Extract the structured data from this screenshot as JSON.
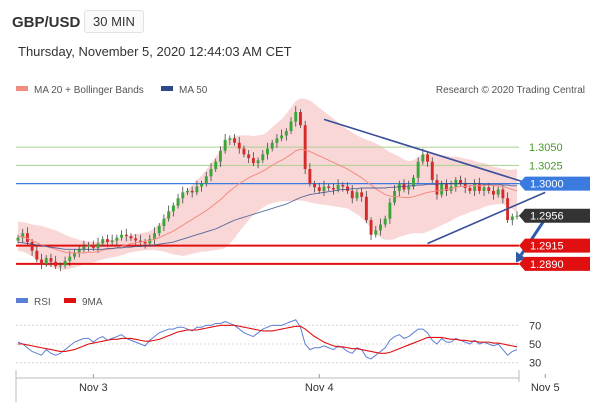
{
  "header": {
    "symbol": "GBP/USD",
    "timeframe": "30 MIN",
    "datetime": "Thursday, November 5, 2020 12:44:03 AM CET"
  },
  "legend_main": [
    {
      "label": "MA 20 + Bollinger Bands",
      "color": "#f28b82"
    },
    {
      "label": "MA 50",
      "color": "#2b4a8a"
    }
  ],
  "credit": "Research © 2020 Trading Central",
  "legend_rsi": [
    {
      "label": "RSI",
      "color": "#5b7fd6"
    },
    {
      "label": "9MA",
      "color": "#e01010"
    }
  ],
  "colors": {
    "bull": "#3aa63a",
    "bear": "#d62a2a",
    "band_fill": "#f8c9c9",
    "ma20": "#f28b82",
    "ma50": "#2b4a8a",
    "resistance_green": "#a9d18e",
    "pivot_blue": "#3b7be0",
    "support_red": "#e01010",
    "trendline": "#3a4f9a",
    "arrow": "#2f5aa8"
  },
  "chart_data": {
    "type": "candlestick",
    "price_range": [
      1.2868,
      1.312
    ],
    "x_labels": [
      {
        "label": "Nov 3",
        "index": 16
      },
      {
        "label": "Nov 4",
        "index": 64
      },
      {
        "label": "Nov 5",
        "index": 112
      }
    ],
    "levels": [
      {
        "label": "1.3050",
        "value": 1.305,
        "kind": "resistance"
      },
      {
        "label": "1.3025",
        "value": 1.3025,
        "kind": "resistance"
      },
      {
        "label": "1.3000",
        "value": 1.3,
        "kind": "pivot"
      },
      {
        "label": "1.2956",
        "value": 1.2956,
        "kind": "last"
      },
      {
        "label": "1.2915",
        "value": 1.2915,
        "kind": "support"
      },
      {
        "label": "1.2890",
        "value": 1.289,
        "kind": "support"
      }
    ],
    "closes": [
      1.2926,
      1.2932,
      1.292,
      1.2908,
      1.2896,
      1.289,
      1.2898,
      1.2893,
      1.2887,
      1.2888,
      1.2894,
      1.29,
      1.2906,
      1.291,
      1.2914,
      1.2916,
      1.2912,
      1.2918,
      1.2924,
      1.292,
      1.2922,
      1.2926,
      1.293,
      1.2928,
      1.2925,
      1.2922,
      1.292,
      1.2918,
      1.2924,
      1.2932,
      1.2942,
      1.2952,
      1.2962,
      1.297,
      1.298,
      1.2988,
      1.299,
      1.2988,
      1.2996,
      1.3,
      1.301,
      1.302,
      1.303,
      1.3045,
      1.306,
      1.3062,
      1.3056,
      1.3048,
      1.304,
      1.3035,
      1.3028,
      1.3032,
      1.304,
      1.3048,
      1.3056,
      1.3062,
      1.3066,
      1.3072,
      1.3085,
      1.3098,
      1.308,
      1.302,
      1.3,
      1.2995,
      1.299,
      1.2996,
      1.2994,
      1.2992,
      1.2998,
      1.2996,
      1.299,
      1.298,
      1.2988,
      1.2982,
      1.295,
      1.293,
      1.2936,
      1.2944,
      1.2952,
      1.2974,
      1.299,
      1.3,
      1.2992,
      1.2996,
      1.3008,
      1.303,
      1.304,
      1.303,
      1.3005,
      1.2985,
      1.3,
      1.299,
      1.2996,
      1.3005,
      1.3,
      1.2994,
      1.299,
      1.3,
      1.299,
      1.2995,
      1.299,
      1.2985,
      1.2992,
      1.298,
      1.295,
      1.2955,
      1.2956
    ],
    "ma20": [
      1.2928,
      1.2927,
      1.2925,
      1.2922,
      1.2919,
      1.2916,
      1.2914,
      1.2912,
      1.291,
      1.2908,
      1.2906,
      1.2905,
      1.2905,
      1.2905,
      1.2905,
      1.2906,
      1.2906,
      1.2907,
      1.2909,
      1.291,
      1.2911,
      1.2912,
      1.2914,
      1.2916,
      1.2918,
      1.2919,
      1.292,
      1.2921,
      1.2922,
      1.2924,
      1.2926,
      1.2929,
      1.2932,
      1.2935,
      1.2939,
      1.2943,
      1.2947,
      1.2951,
      1.2955,
      1.2959,
      1.2963,
      1.2968,
      1.2973,
      1.2978,
      1.2984,
      1.299,
      1.2995,
      1.3,
      1.3004,
      1.3008,
      1.3011,
      1.3014,
      1.3017,
      1.3021,
      1.3025,
      1.3029,
      1.3032,
      1.3036,
      1.304,
      1.3045,
      1.3047,
      1.3046,
      1.3044,
      1.3041,
      1.3038,
      1.3035,
      1.3032,
      1.3029,
      1.3026,
      1.3023,
      1.302,
      1.3016,
      1.3012,
      1.3008,
      1.3003,
      1.2998,
      1.2993,
      1.2989,
      1.2985,
      1.2983,
      1.2982,
      1.2982,
      1.2981,
      1.2981,
      1.2982,
      1.2984,
      1.2986,
      1.2988,
      1.2989,
      1.299,
      1.2991,
      1.2992,
      1.2993,
      1.2995,
      1.2996,
      1.2996,
      1.2997,
      1.2997,
      1.2997,
      1.2998,
      1.2998,
      1.2997,
      1.2997,
      1.2996,
      1.2994,
      1.2992,
      1.299
    ],
    "bb_width": [
      0.002,
      0.002,
      0.0021,
      0.0022,
      0.0024,
      0.0026,
      0.0026,
      0.0026,
      0.0026,
      0.0025,
      0.0024,
      0.0022,
      0.002,
      0.0018,
      0.0016,
      0.0015,
      0.0014,
      0.0013,
      0.0013,
      0.0012,
      0.0012,
      0.0012,
      0.0012,
      0.0012,
      0.0012,
      0.0012,
      0.0012,
      0.0012,
      0.0013,
      0.0015,
      0.0018,
      0.0022,
      0.0027,
      0.0032,
      0.0037,
      0.0042,
      0.0045,
      0.0047,
      0.005,
      0.0052,
      0.0056,
      0.006,
      0.0064,
      0.0068,
      0.0072,
      0.0072,
      0.007,
      0.0066,
      0.0062,
      0.0058,
      0.0054,
      0.0052,
      0.005,
      0.005,
      0.0052,
      0.0054,
      0.0056,
      0.006,
      0.0064,
      0.0068,
      0.007,
      0.007,
      0.007,
      0.0068,
      0.0066,
      0.0064,
      0.0062,
      0.006,
      0.0058,
      0.0056,
      0.0054,
      0.0054,
      0.0054,
      0.0055,
      0.0057,
      0.006,
      0.0062,
      0.0063,
      0.0062,
      0.006,
      0.0058,
      0.0055,
      0.0052,
      0.005,
      0.005,
      0.0052,
      0.0054,
      0.0054,
      0.0052,
      0.005,
      0.0048,
      0.0046,
      0.0044,
      0.0042,
      0.004,
      0.0038,
      0.0036,
      0.0034,
      0.0032,
      0.003,
      0.0028,
      0.0026,
      0.0025,
      0.0024,
      0.0025,
      0.0027,
      0.003
    ],
    "ma50": [
      1.292,
      1.2919,
      1.2918,
      1.2917,
      1.2916,
      1.2915,
      1.2914,
      1.2913,
      1.2912,
      1.2911,
      1.291,
      1.291,
      1.291,
      1.291,
      1.291,
      1.291,
      1.291,
      1.291,
      1.291,
      1.2911,
      1.2911,
      1.2912,
      1.2912,
      1.2913,
      1.2913,
      1.2914,
      1.2914,
      1.2915,
      1.2915,
      1.2916,
      1.2917,
      1.2918,
      1.2919,
      1.292,
      1.2922,
      1.2924,
      1.2926,
      1.2928,
      1.293,
      1.2932,
      1.2934,
      1.2936,
      1.2938,
      1.2941,
      1.2944,
      1.2947,
      1.295,
      1.2952,
      1.2954,
      1.2956,
      1.2958,
      1.296,
      1.2962,
      1.2964,
      1.2966,
      1.2968,
      1.297,
      1.2972,
      1.2975,
      1.2978,
      1.2981,
      1.2983,
      1.2985,
      1.2986,
      1.2987,
      1.2988,
      1.2989,
      1.299,
      1.2991,
      1.2992,
      1.2992,
      1.2993,
      1.2993,
      1.2994,
      1.2994,
      1.2994,
      1.2994,
      1.2994,
      1.2994,
      1.2995,
      1.2995,
      1.2996,
      1.2996,
      1.2997,
      1.2997,
      1.2998,
      1.2998,
      1.2999,
      1.2999,
      1.2999,
      1.3,
      1.3,
      1.3,
      1.3,
      1.3,
      1.3,
      1.3,
      1.3,
      1.3,
      1.2999,
      1.2999,
      1.2999,
      1.2999,
      1.2998,
      1.2998,
      1.2997,
      1.2997
    ],
    "trendlines": [
      {
        "from": [
          65,
          1.3088
        ],
        "to": [
          112,
          1.2993
        ]
      },
      {
        "from": [
          87,
          1.2918
        ],
        "to": [
          112,
          1.2988
        ]
      }
    ],
    "forecast_arrow": {
      "from": [
        112,
        1.296
      ],
      "to": [
        124,
        1.2892
      ]
    },
    "rsi": {
      "range": [
        20,
        80
      ],
      "ticks": [
        70,
        50,
        30
      ],
      "rsi": [
        52,
        50,
        46,
        42,
        40,
        38,
        44,
        40,
        38,
        40,
        44,
        48,
        52,
        54,
        56,
        56,
        52,
        56,
        58,
        54,
        56,
        58,
        60,
        56,
        54,
        52,
        50,
        48,
        54,
        58,
        62,
        64,
        66,
        66,
        68,
        68,
        66,
        64,
        68,
        68,
        70,
        70,
        72,
        72,
        74,
        72,
        70,
        66,
        62,
        60,
        58,
        62,
        66,
        68,
        70,
        70,
        70,
        72,
        74,
        76,
        68,
        50,
        44,
        46,
        46,
        48,
        46,
        44,
        48,
        46,
        42,
        40,
        46,
        44,
        36,
        34,
        38,
        42,
        46,
        54,
        58,
        60,
        56,
        58,
        62,
        66,
        66,
        62,
        54,
        50,
        56,
        52,
        52,
        56,
        54,
        52,
        50,
        54,
        50,
        52,
        50,
        48,
        50,
        44,
        38,
        42,
        44
      ],
      "ma9": [
        50,
        50,
        49,
        48,
        47,
        46,
        45,
        44,
        43,
        42,
        42,
        43,
        44,
        46,
        48,
        50,
        51,
        52,
        53,
        54,
        55,
        55,
        56,
        56,
        56,
        55,
        54,
        53,
        53,
        54,
        55,
        57,
        59,
        61,
        63,
        64,
        65,
        65,
        65,
        66,
        67,
        68,
        69,
        70,
        70,
        70,
        70,
        69,
        68,
        67,
        66,
        65,
        64,
        64,
        64,
        65,
        66,
        67,
        68,
        69,
        69,
        66,
        62,
        58,
        55,
        52,
        50,
        48,
        47,
        47,
        46,
        45,
        45,
        44,
        43,
        42,
        41,
        40,
        40,
        41,
        43,
        45,
        47,
        49,
        51,
        53,
        55,
        57,
        57,
        57,
        57,
        56,
        55,
        55,
        54,
        54,
        53,
        53,
        52,
        52,
        52,
        51,
        51,
        50,
        49,
        48,
        47
      ]
    }
  }
}
